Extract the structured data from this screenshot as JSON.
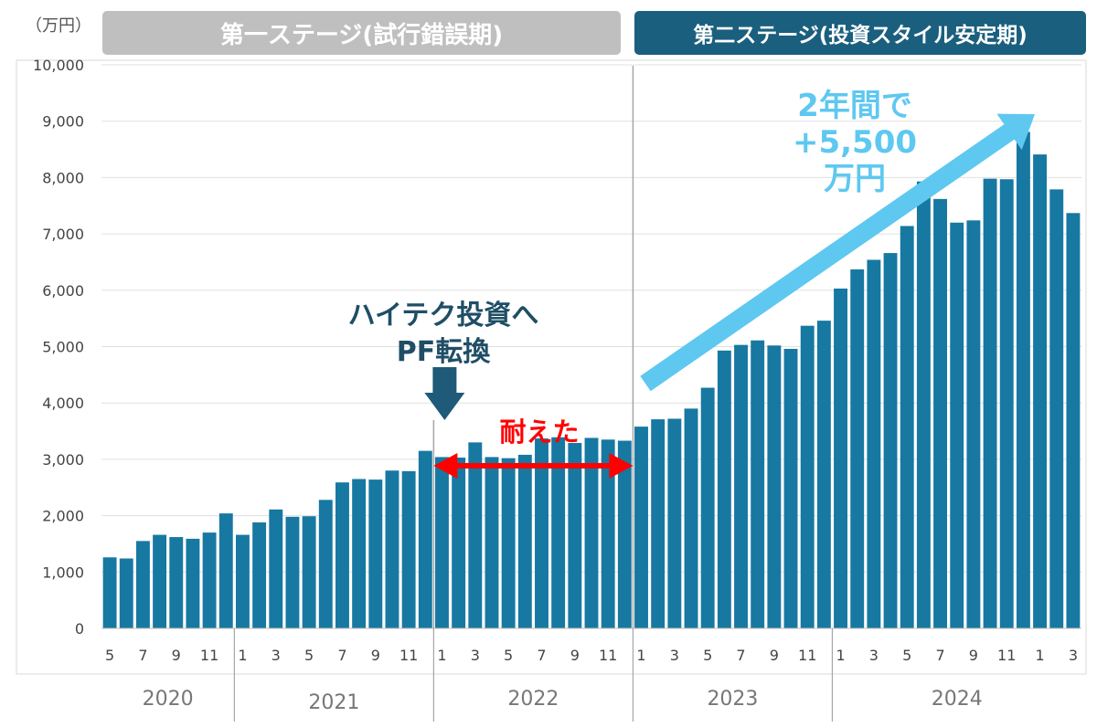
{
  "unit_label": "（万円）",
  "stages": {
    "first": "第一ステージ(試行錯誤期)",
    "second": "第二ステージ(投資スタイル安定期)"
  },
  "annotations": {
    "pf_line1": "ハイテク投資へ",
    "pf_line2": "PF転換",
    "endured": "耐えた",
    "gain_line1": "2年間で",
    "gain_line2": "+5,500",
    "gain_line3": "万円"
  },
  "colors": {
    "bar": "#1778a2",
    "stage1": "#bfbfbf",
    "stage2": "#1b5f7e",
    "pf_arrow": "#1f5a78",
    "endured": "#ff0000",
    "gain": "#5ec8f0"
  },
  "chart_data": {
    "type": "bar",
    "ylim": [
      0,
      10000
    ],
    "yticks": [
      "0",
      "1,000",
      "2,000",
      "3,000",
      "4,000",
      "5,000",
      "6,000",
      "7,000",
      "8,000",
      "9,000",
      "10,000"
    ],
    "month_labels": [
      "5",
      "",
      "7",
      "",
      "9",
      "",
      "11",
      "",
      "1",
      "",
      "3",
      "",
      "5",
      "",
      "7",
      "",
      "9",
      "",
      "11",
      "",
      "1",
      "",
      "3",
      "",
      "5",
      "",
      "7",
      "",
      "9",
      "",
      "11",
      "",
      "1",
      "",
      "3",
      "",
      "5",
      "",
      "7",
      "",
      "9",
      "",
      "11",
      "",
      "1",
      "",
      "3",
      "",
      "5",
      "",
      "7",
      "",
      "9",
      "",
      "11",
      "",
      "1",
      "",
      "3"
    ],
    "years": [
      "2020",
      "2021",
      "2022",
      "2023",
      "2024"
    ],
    "values": [
      1260,
      1240,
      1550,
      1660,
      1620,
      1590,
      1700,
      2040,
      1660,
      1880,
      2110,
      1980,
      1990,
      2280,
      2590,
      2650,
      2640,
      2800,
      2790,
      3150,
      3040,
      3030,
      3300,
      3040,
      3020,
      3080,
      3370,
      3390,
      3290,
      3380,
      3350,
      3330,
      3580,
      3710,
      3720,
      3900,
      4270,
      4930,
      5030,
      5110,
      5020,
      4960,
      5370,
      5460,
      6030,
      6370,
      6540,
      6660,
      7140,
      7930,
      7620,
      7200,
      7240,
      7980,
      7970,
      8810,
      8410,
      7790,
      7370
    ]
  }
}
